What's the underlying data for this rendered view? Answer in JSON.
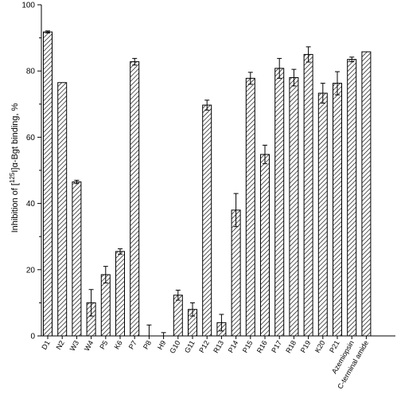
{
  "chart_data": {
    "type": "bar",
    "title": "",
    "xlabel": "",
    "ylabel_prefix": "Inhibition of [",
    "ylabel_sup": "125",
    "ylabel_suffix": "I]α-Bgt binding, %",
    "ylim": [
      0,
      100
    ],
    "yticks": [
      "0",
      "20",
      "40",
      "60",
      "80",
      "100"
    ],
    "grid": false,
    "bar_pattern": "diagonal-hatch",
    "bar_color": "#000000",
    "categories": [
      "D1",
      "N2",
      "W3",
      "W4",
      "P5",
      "K6",
      "P7",
      "P8",
      "H9",
      "G10",
      "G11",
      "P12",
      "R13",
      "P14",
      "P15",
      "R16",
      "P17",
      "R18",
      "P19",
      "K20",
      "P21",
      "Azemiopsin",
      "C-terminal amide"
    ],
    "values": [
      91.8,
      76.5,
      46.5,
      10,
      18.5,
      25.5,
      82.8,
      0,
      0,
      12.3,
      8,
      69.7,
      4,
      38,
      77.8,
      54.8,
      80.8,
      78,
      85,
      73.3,
      76.3,
      83.5,
      85.8
    ],
    "errors": [
      0.3,
      0,
      0.5,
      4,
      2.5,
      0.8,
      1,
      3.3,
      1,
      1.5,
      2,
      1.5,
      2.5,
      5,
      1.8,
      2.8,
      3,
      2.5,
      2.3,
      3,
      3.5,
      0.7,
      0
    ]
  }
}
